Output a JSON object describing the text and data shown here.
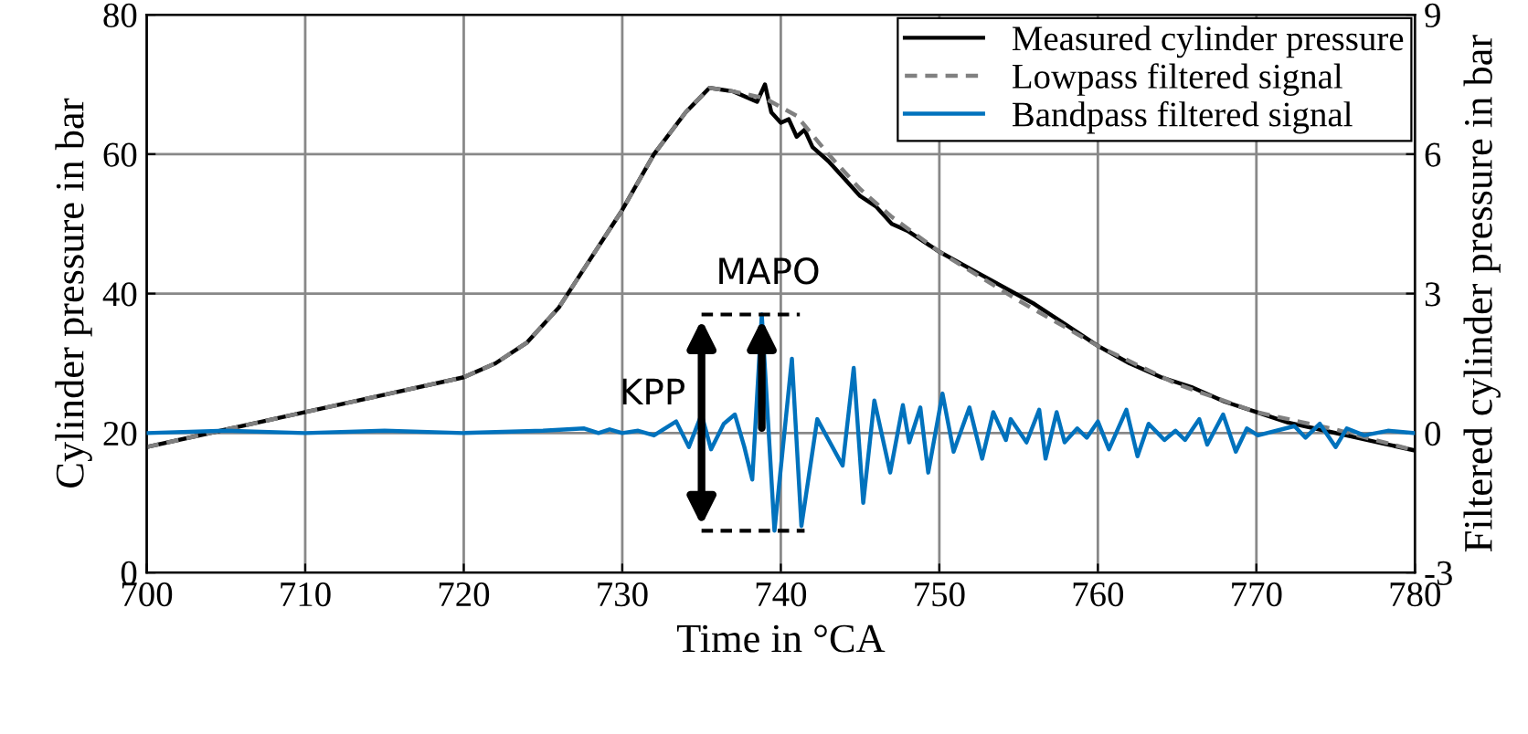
{
  "chart_data": {
    "type": "line",
    "xlabel": "Time in °CA",
    "ylabel": "Cylinder pressure in bar",
    "y2label": "Filtered cylinder pressure in bar",
    "xlim": [
      700,
      780
    ],
    "xticks": [
      700,
      710,
      720,
      730,
      740,
      750,
      760,
      770,
      780
    ],
    "ylim": [
      0,
      80
    ],
    "yticks": [
      0,
      20,
      40,
      60,
      80
    ],
    "y2lim": [
      -3,
      9
    ],
    "y2ticks": [
      -3,
      0,
      3,
      6,
      9
    ],
    "grid": true,
    "legend": "top right",
    "line_style": "solid",
    "annotations": [
      "KPP",
      "MAPO"
    ],
    "series": [
      {
        "name": "Measured cylinder pressure",
        "color": "#000000",
        "x": [
          700,
          705,
          710,
          715,
          720,
          722,
          724,
          726,
          728,
          730,
          732,
          734,
          735.5,
          737,
          738.5,
          739,
          739.4,
          740,
          740.5,
          741,
          741.5,
          742,
          743,
          744,
          745,
          746,
          747,
          748,
          749,
          750,
          752,
          754,
          756,
          758,
          760,
          762,
          764,
          766,
          768,
          770,
          772,
          774,
          776,
          778,
          780
        ],
        "values": [
          18,
          20.5,
          23,
          25.5,
          28,
          30,
          33,
          38,
          45,
          52,
          60,
          66,
          69.5,
          69,
          67.5,
          70,
          66,
          64.5,
          65,
          62.5,
          63.5,
          61,
          59,
          56.5,
          54,
          52.5,
          50,
          49,
          47.5,
          46,
          43.5,
          41,
          38.5,
          35.5,
          32.5,
          30,
          28,
          26.5,
          24.5,
          23,
          21.5,
          20.5,
          19.5,
          18.5,
          17.5
        ]
      },
      {
        "name": "Lowpass filtered signal",
        "color": "#808080",
        "line_style": "dashed",
        "x": [
          700,
          705,
          710,
          715,
          720,
          722,
          724,
          726,
          728,
          730,
          732,
          734,
          735.5,
          737,
          739,
          741,
          743,
          745,
          747,
          750,
          755,
          760,
          765,
          770,
          775,
          780
        ],
        "values": [
          18,
          20.5,
          23,
          25.5,
          28,
          30,
          33,
          38,
          45,
          52,
          60,
          66,
          69.5,
          69,
          68,
          65.5,
          60,
          55,
          51,
          46,
          39,
          32.5,
          27,
          23,
          20.5,
          17.5
        ]
      },
      {
        "name": "Bandpass filtered signal",
        "color": "#0072bd",
        "axis": "y2",
        "x": [
          700,
          705,
          710,
          715,
          720,
          725,
          727.6,
          728.5,
          729.2,
          730,
          731,
          732,
          733.4,
          734.2,
          735,
          735.6,
          736.4,
          737.1,
          737.7,
          738.2,
          738.8,
          739.6,
          740.7,
          741.3,
          742.3,
          743.9,
          744.6,
          745.2,
          745.9,
          746.9,
          747.7,
          748.1,
          748.8,
          749.3,
          750.2,
          750.9,
          751.9,
          752.7,
          753.4,
          754.2,
          754.5,
          755.5,
          756.3,
          756.7,
          757.4,
          757.9,
          758.7,
          759.3,
          760,
          760.7,
          761.8,
          762.5,
          763.2,
          764.2,
          764.9,
          765.5,
          766.4,
          766.9,
          767.9,
          768.7,
          769.4,
          770.1,
          772.4,
          773.1,
          774,
          775,
          775.7,
          776.8,
          778.3,
          780
        ],
        "values": [
          0,
          0.05,
          0,
          0.05,
          0,
          0.05,
          0.1,
          0,
          0.08,
          0,
          0.05,
          -0.05,
          0.25,
          -0.3,
          0.4,
          -0.35,
          0.2,
          0.4,
          -0.3,
          -1.0,
          2.55,
          -2.1,
          1.6,
          -2.0,
          0.3,
          -0.7,
          1.4,
          -1.5,
          0.7,
          -0.85,
          0.6,
          -0.2,
          0.55,
          -0.85,
          0.85,
          -0.4,
          0.55,
          -0.55,
          0.45,
          -0.15,
          0.3,
          -0.2,
          0.5,
          -0.55,
          0.45,
          -0.2,
          0.1,
          -0.1,
          0.25,
          -0.35,
          0.5,
          -0.5,
          0.2,
          -0.15,
          0.05,
          -0.15,
          0.3,
          -0.25,
          0.4,
          -0.4,
          0.1,
          -0.05,
          0.15,
          -0.1,
          0.2,
          -0.3,
          0.1,
          -0.05,
          0.05,
          0
        ]
      }
    ]
  }
}
